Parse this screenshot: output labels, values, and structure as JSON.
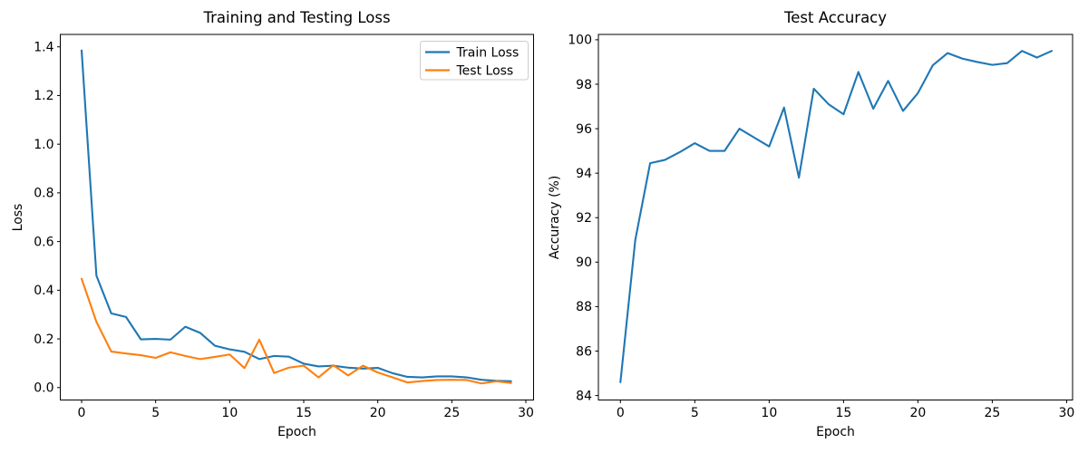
{
  "figure": {
    "background": "#ffffff",
    "text_color": "#000000",
    "spine_color": "#000000"
  },
  "chart_data": [
    {
      "type": "line",
      "title": "Training and Testing Loss",
      "xlabel": "Epoch",
      "ylabel": "Loss",
      "grid": false,
      "legend": {
        "position": "upper right",
        "entries": [
          "Train Loss",
          "Test Loss"
        ]
      },
      "xlim": [
        -1.44,
        30.52
      ],
      "ylim": [
        -0.051,
        1.451
      ],
      "xticks": [
        0,
        5,
        10,
        15,
        20,
        25,
        30
      ],
      "xtick_labels": [
        "0",
        "5",
        "10",
        "15",
        "20",
        "25",
        "30"
      ],
      "yticks": [
        0.0,
        0.2,
        0.4,
        0.6,
        0.8,
        1.0,
        1.2,
        1.4
      ],
      "ytick_labels": [
        "0.0",
        "0.2",
        "0.4",
        "0.6",
        "0.8",
        "1.0",
        "1.2",
        "1.4"
      ],
      "x": [
        0,
        1,
        2,
        3,
        4,
        5,
        6,
        7,
        8,
        9,
        10,
        11,
        12,
        13,
        14,
        15,
        16,
        17,
        18,
        19,
        20,
        21,
        22,
        23,
        24,
        25,
        26,
        27,
        28,
        29
      ],
      "series": [
        {
          "name": "Train Loss",
          "color": "#1f77b4",
          "values": [
            1.385,
            0.46,
            0.305,
            0.29,
            0.198,
            0.2,
            0.197,
            0.25,
            0.225,
            0.172,
            0.157,
            0.147,
            0.117,
            0.13,
            0.127,
            0.098,
            0.087,
            0.09,
            0.082,
            0.078,
            0.081,
            0.059,
            0.044,
            0.042,
            0.046,
            0.046,
            0.042,
            0.032,
            0.028,
            0.026
          ]
        },
        {
          "name": "Test Loss",
          "color": "#ff7f0e",
          "values": [
            0.447,
            0.27,
            0.148,
            0.14,
            0.133,
            0.122,
            0.145,
            0.13,
            0.117,
            0.126,
            0.136,
            0.08,
            0.197,
            0.06,
            0.082,
            0.09,
            0.042,
            0.092,
            0.05,
            0.09,
            0.062,
            0.042,
            0.021,
            0.027,
            0.031,
            0.032,
            0.031,
            0.017,
            0.026,
            0.019
          ]
        }
      ]
    },
    {
      "type": "line",
      "title": "Test Accuracy",
      "xlabel": "Epoch",
      "ylabel": "Accuracy (%)",
      "grid": false,
      "legend": null,
      "xlim": [
        -1.48,
        30.4
      ],
      "ylim": [
        83.8,
        100.24
      ],
      "xticks": [
        0,
        5,
        10,
        15,
        20,
        25,
        30
      ],
      "xtick_labels": [
        "0",
        "5",
        "10",
        "15",
        "20",
        "25",
        "30"
      ],
      "yticks": [
        84,
        86,
        88,
        90,
        92,
        94,
        96,
        98,
        100
      ],
      "ytick_labels": [
        "84",
        "86",
        "88",
        "90",
        "92",
        "94",
        "96",
        "98",
        "100"
      ],
      "x": [
        0,
        1,
        2,
        3,
        4,
        5,
        6,
        7,
        8,
        9,
        10,
        11,
        12,
        13,
        14,
        15,
        16,
        17,
        18,
        19,
        20,
        21,
        22,
        23,
        24,
        25,
        26,
        27,
        28,
        29
      ],
      "series": [
        {
          "name": "Test Accuracy",
          "color": "#1f77b4",
          "values": [
            84.6,
            91.0,
            94.45,
            94.6,
            94.95,
            95.35,
            95.0,
            95.0,
            96.0,
            95.6,
            95.2,
            96.95,
            93.8,
            97.8,
            97.1,
            96.65,
            98.55,
            96.9,
            98.15,
            96.8,
            97.6,
            98.85,
            99.4,
            99.15,
            99.0,
            98.87,
            98.95,
            99.5,
            99.2,
            99.5
          ]
        }
      ]
    }
  ]
}
